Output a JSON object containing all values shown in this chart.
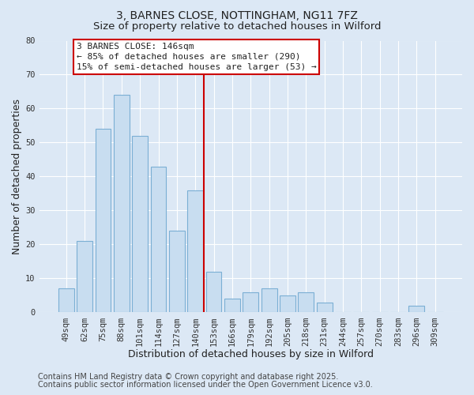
{
  "title": "3, BARNES CLOSE, NOTTINGHAM, NG11 7FZ",
  "subtitle": "Size of property relative to detached houses in Wilford",
  "xlabel": "Distribution of detached houses by size in Wilford",
  "ylabel": "Number of detached properties",
  "bar_labels": [
    "49sqm",
    "62sqm",
    "75sqm",
    "88sqm",
    "101sqm",
    "114sqm",
    "127sqm",
    "140sqm",
    "153sqm",
    "166sqm",
    "179sqm",
    "192sqm",
    "205sqm",
    "218sqm",
    "231sqm",
    "244sqm",
    "257sqm",
    "270sqm",
    "283sqm",
    "296sqm",
    "309sqm"
  ],
  "bar_values": [
    7,
    21,
    54,
    64,
    52,
    43,
    24,
    36,
    12,
    4,
    6,
    7,
    5,
    6,
    3,
    0,
    0,
    0,
    0,
    2,
    0
  ],
  "bar_color": "#c8ddf0",
  "bar_edge_color": "#7bafd4",
  "vline_color": "#cc0000",
  "ylim": [
    0,
    80
  ],
  "yticks": [
    0,
    10,
    20,
    30,
    40,
    50,
    60,
    70,
    80
  ],
  "annotation_title": "3 BARNES CLOSE: 146sqm",
  "annotation_line1": "← 85% of detached houses are smaller (290)",
  "annotation_line2": "15% of semi-detached houses are larger (53) →",
  "annotation_box_color": "#ffffff",
  "annotation_box_edge": "#cc0000",
  "footer1": "Contains HM Land Registry data © Crown copyright and database right 2025.",
  "footer2": "Contains public sector information licensed under the Open Government Licence v3.0.",
  "bg_color": "#dce8f5",
  "plot_bg_color": "#dce8f5",
  "grid_color": "#ffffff",
  "title_fontsize": 10,
  "subtitle_fontsize": 9.5,
  "axis_label_fontsize": 9,
  "tick_fontsize": 7.5,
  "footer_fontsize": 7,
  "annotation_fontsize": 8
}
